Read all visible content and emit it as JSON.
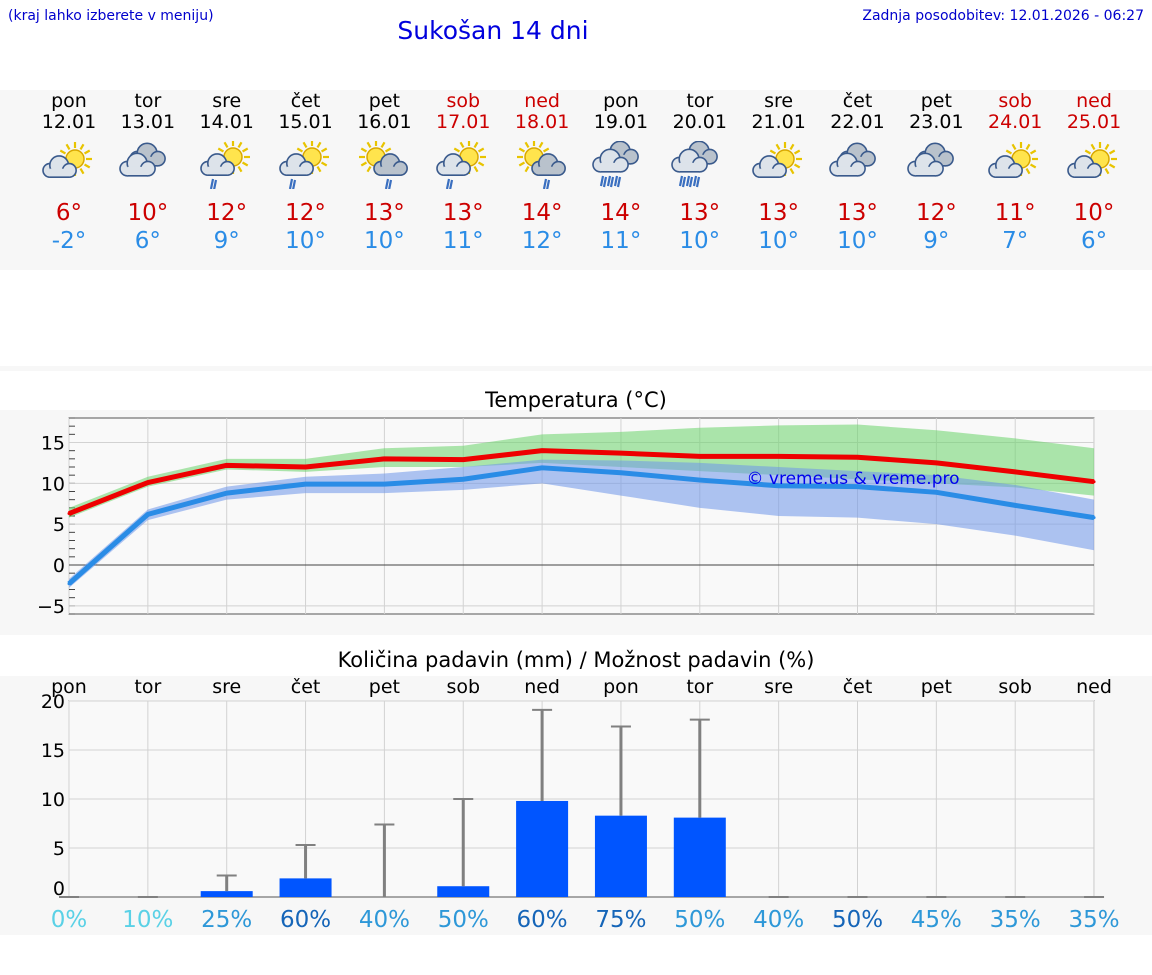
{
  "header": {
    "hint": "(kraj lahko izberete v meniju)",
    "title": "Sukošan 14 dni",
    "updated": "Zadnja posodobitev: 12.01.2026 - 06:27"
  },
  "colors": {
    "max_temp": "#ee0000",
    "min_temp": "#2a8ce6",
    "precip_bar": "#0055ff",
    "weekend": "#cc0000"
  },
  "days": [
    {
      "name": "pon",
      "date": "12.01",
      "weekend": false,
      "icon": "partly-cloudy-icon",
      "max": "6°",
      "min": "-2°"
    },
    {
      "name": "tor",
      "date": "13.01",
      "weekend": false,
      "icon": "cloudy-icon",
      "max": "10°",
      "min": "6°"
    },
    {
      "name": "sre",
      "date": "14.01",
      "weekend": false,
      "icon": "sun-rain-icon",
      "max": "12°",
      "min": "9°"
    },
    {
      "name": "čet",
      "date": "15.01",
      "weekend": false,
      "icon": "sun-rain-icon",
      "max": "12°",
      "min": "10°"
    },
    {
      "name": "pet",
      "date": "16.01",
      "weekend": false,
      "icon": "sun-cloud-rain-icon",
      "max": "13°",
      "min": "10°"
    },
    {
      "name": "sob",
      "date": "17.01",
      "weekend": true,
      "icon": "sun-rain-icon",
      "max": "13°",
      "min": "11°"
    },
    {
      "name": "ned",
      "date": "18.01",
      "weekend": true,
      "icon": "sun-cloud-rain-icon",
      "max": "14°",
      "min": "12°"
    },
    {
      "name": "pon",
      "date": "19.01",
      "weekend": false,
      "icon": "heavy-rain-icon",
      "max": "14°",
      "min": "11°"
    },
    {
      "name": "tor",
      "date": "20.01",
      "weekend": false,
      "icon": "heavy-rain-icon",
      "max": "13°",
      "min": "10°"
    },
    {
      "name": "sre",
      "date": "21.01",
      "weekend": false,
      "icon": "partly-cloudy-icon",
      "max": "13°",
      "min": "10°"
    },
    {
      "name": "čet",
      "date": "22.01",
      "weekend": false,
      "icon": "cloudy-icon",
      "max": "13°",
      "min": "10°"
    },
    {
      "name": "pet",
      "date": "23.01",
      "weekend": false,
      "icon": "cloudy-icon",
      "max": "12°",
      "min": "9°"
    },
    {
      "name": "sob",
      "date": "24.01",
      "weekend": true,
      "icon": "partly-cloudy-icon",
      "max": "11°",
      "min": "7°"
    },
    {
      "name": "ned",
      "date": "25.01",
      "weekend": true,
      "icon": "partly-cloudy-icon",
      "max": "10°",
      "min": "6°"
    }
  ],
  "chart_data": [
    {
      "type": "line",
      "title": "Temperatura (°C)",
      "watermark": "© vreme.us & vreme.pro",
      "ylim": [
        -6,
        18
      ],
      "yticks": [
        -5,
        0,
        5,
        10,
        15
      ],
      "ytick_labels": [
        "−5",
        "0",
        "5",
        "10",
        "15"
      ],
      "x": [
        0,
        1,
        2,
        3,
        4,
        5,
        6,
        7,
        8,
        9,
        10,
        11,
        12,
        13
      ],
      "series": [
        {
          "name": "max",
          "values": [
            6.3,
            10.1,
            12.2,
            12.0,
            13.0,
            12.9,
            14.0,
            13.7,
            13.3,
            13.3,
            13.2,
            12.5,
            11.4,
            10.2
          ]
        },
        {
          "name": "min",
          "values": [
            -2.3,
            6.2,
            8.8,
            9.9,
            9.9,
            10.5,
            11.9,
            11.3,
            10.4,
            9.7,
            9.6,
            8.9,
            7.3,
            5.8
          ]
        }
      ],
      "bands": [
        {
          "name": "max_range",
          "low": [
            5.8,
            9.6,
            11.7,
            11.4,
            12.0,
            12.0,
            12.5,
            12.0,
            11.5,
            11.0,
            10.5,
            10.0,
            9.5,
            8.5
          ],
          "high": [
            7.0,
            10.8,
            13.0,
            13.0,
            14.3,
            14.6,
            16.0,
            16.3,
            16.8,
            17.1,
            17.2,
            16.5,
            15.5,
            14.3
          ]
        },
        {
          "name": "min_range",
          "low": [
            -2.8,
            5.5,
            8.0,
            8.8,
            8.8,
            9.2,
            10.0,
            8.5,
            7.0,
            6.0,
            5.8,
            5.0,
            3.6,
            1.8
          ],
          "high": [
            -1.7,
            6.8,
            9.6,
            10.8,
            11.2,
            12.0,
            12.9,
            12.8,
            12.5,
            12.0,
            11.5,
            11.0,
            9.8,
            8.0
          ]
        }
      ]
    },
    {
      "type": "bar",
      "title": "Količina padavin (mm) / Možnost padavin (%)",
      "ylim": [
        0,
        20
      ],
      "yticks": [
        0,
        5,
        10,
        15,
        20
      ],
      "categories": [
        "pon",
        "tor",
        "sre",
        "čet",
        "pet",
        "sob",
        "ned",
        "pon",
        "tor",
        "sre",
        "čet",
        "pet",
        "sob",
        "ned"
      ],
      "values": [
        0,
        0,
        0.6,
        1.9,
        0,
        1.1,
        9.8,
        8.3,
        8.1,
        0,
        0,
        0,
        0,
        0
      ],
      "error_max": [
        0,
        0,
        2.2,
        5.3,
        7.4,
        10.0,
        19.1,
        17.4,
        18.1,
        0,
        0,
        0,
        0,
        0
      ],
      "probability": [
        "0%",
        "10%",
        "25%",
        "60%",
        "40%",
        "50%",
        "60%",
        "75%",
        "50%",
        "40%",
        "50%",
        "45%",
        "35%",
        "35%"
      ],
      "probability_colors": [
        "#5ad1e6",
        "#5ad1e6",
        "#2e98d8",
        "#1565b8",
        "#2e98d8",
        "#2e98d8",
        "#1565b8",
        "#1565b8",
        "#2e98d8",
        "#2e98d8",
        "#1565b8",
        "#2e98d8",
        "#2e98d8",
        "#2e98d8"
      ]
    }
  ]
}
